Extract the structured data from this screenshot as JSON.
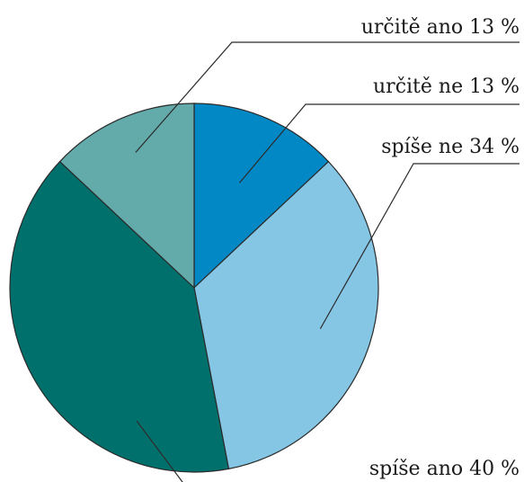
{
  "chart_data": {
    "type": "pie",
    "start_angle_deg": 0,
    "direction": "clockwise",
    "slices": [
      {
        "label": "určitě ne 13 %",
        "value": 13,
        "color": "#0288c5"
      },
      {
        "label": "spíše ne 34 %",
        "value": 34,
        "color": "#84c6e4"
      },
      {
        "label": "spíše ano 40 %",
        "value": 40,
        "color": "#00706c"
      },
      {
        "label": "určitě ano 13 %",
        "value": 13,
        "color": "#63aaab"
      }
    ],
    "legend": "none",
    "labels": "leader-lines"
  }
}
